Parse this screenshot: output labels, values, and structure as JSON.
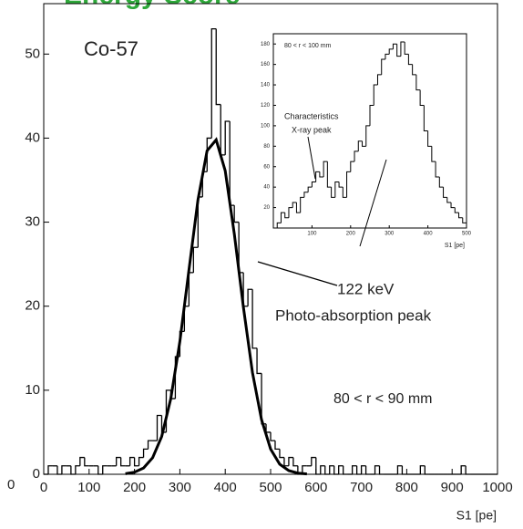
{
  "header": {
    "title": "Energy Score",
    "outer_label": "0"
  },
  "chart_data": [
    {
      "type": "histogram",
      "label": "Co-57",
      "annotation": "122 keV",
      "annotation_2": "Photo-absorption peak",
      "cut": "80 < r < 90 mm",
      "x_label": "S1 [pe]",
      "color": "#000000",
      "bins": [
        0,
        10,
        20,
        30,
        40,
        50,
        60,
        70,
        80,
        90,
        100,
        110,
        120,
        130,
        140,
        150,
        160,
        170,
        180,
        190,
        200,
        210,
        220,
        230,
        240,
        250,
        260,
        270,
        280,
        290,
        300,
        310,
        320,
        330,
        340,
        350,
        360,
        370,
        380,
        390,
        400,
        410,
        420,
        430,
        440,
        450,
        460,
        470,
        480,
        490,
        500,
        510,
        520,
        530,
        540,
        550,
        560,
        570,
        580,
        590,
        600,
        610,
        620,
        630,
        640,
        650,
        660,
        670,
        680,
        690,
        700,
        710,
        720,
        730,
        740,
        750,
        760,
        770,
        780,
        790,
        800,
        810,
        820,
        830,
        840,
        850,
        860,
        870,
        880,
        890,
        900,
        910,
        920,
        930,
        940,
        950,
        960,
        970,
        980,
        990,
        1000
      ],
      "values": [
        0,
        1,
        1,
        0,
        1,
        1,
        0,
        1,
        2,
        1,
        1,
        1,
        0,
        1,
        1,
        1,
        2,
        1,
        1,
        2,
        1,
        2,
        3,
        4,
        4,
        7,
        5,
        10,
        9,
        14,
        17,
        20,
        24,
        27,
        33,
        36,
        40,
        53,
        44,
        38,
        42,
        32,
        30,
        24,
        20,
        22,
        15,
        12,
        6,
        5,
        4,
        3,
        2,
        1,
        2,
        1,
        0,
        1,
        1,
        2,
        0,
        1,
        0,
        1,
        0,
        1,
        0,
        0,
        1,
        0,
        1,
        0,
        0,
        1,
        0,
        0,
        0,
        0,
        1,
        0,
        0,
        0,
        0,
        1,
        0,
        0,
        0,
        0,
        0,
        0,
        0,
        0,
        1,
        0,
        0,
        0,
        0,
        0,
        0,
        0
      ],
      "fit": {
        "x": [
          180,
          200,
          220,
          240,
          260,
          280,
          300,
          320,
          340,
          360,
          380,
          400,
          420,
          440,
          460,
          480,
          500,
          520,
          540,
          560,
          580
        ],
        "values": [
          0.07,
          0.25,
          0.75,
          1.97,
          4.5,
          9.0,
          15.8,
          24.3,
          32.7,
          38.5,
          39.8,
          36.1,
          28.6,
          19.9,
          12.1,
          6.5,
          3.0,
          1.2,
          0.44,
          0.14,
          0.04
        ]
      },
      "xlim": [
        0,
        1000
      ],
      "xticks": [
        0,
        100,
        200,
        300,
        400,
        500,
        600,
        700,
        800,
        900,
        1000
      ],
      "ylim": [
        0,
        56
      ],
      "yticks": [
        0,
        10,
        20,
        30,
        40,
        50
      ]
    },
    {
      "type": "histogram",
      "label": "80 < r < 100 mm",
      "annotation": "Characteristics",
      "annotation_2": "X-ray peak",
      "x_label": "S1 [pe]",
      "color": "#000000",
      "bins": [
        0,
        10,
        20,
        30,
        40,
        50,
        60,
        70,
        80,
        90,
        100,
        110,
        120,
        130,
        140,
        150,
        160,
        170,
        180,
        190,
        200,
        210,
        220,
        230,
        240,
        250,
        260,
        270,
        280,
        290,
        300,
        310,
        320,
        330,
        340,
        350,
        360,
        370,
        380,
        390,
        400,
        410,
        420,
        430,
        440,
        450,
        460,
        470,
        480,
        490,
        500
      ],
      "values": [
        0,
        5,
        15,
        10,
        20,
        25,
        15,
        30,
        35,
        40,
        45,
        55,
        50,
        65,
        40,
        30,
        45,
        40,
        30,
        55,
        65,
        75,
        85,
        80,
        100,
        120,
        140,
        150,
        165,
        170,
        175,
        180,
        168,
        182,
        170,
        160,
        150,
        135,
        120,
        95,
        80,
        65,
        50,
        40,
        30,
        25,
        20,
        15,
        10,
        5
      ],
      "xlim": [
        0,
        500
      ],
      "xticks": [
        100,
        200,
        300,
        400,
        500
      ],
      "ylim": [
        0,
        190
      ],
      "yticks": [
        20,
        40,
        60,
        80,
        100,
        120,
        140,
        160,
        180
      ]
    }
  ]
}
